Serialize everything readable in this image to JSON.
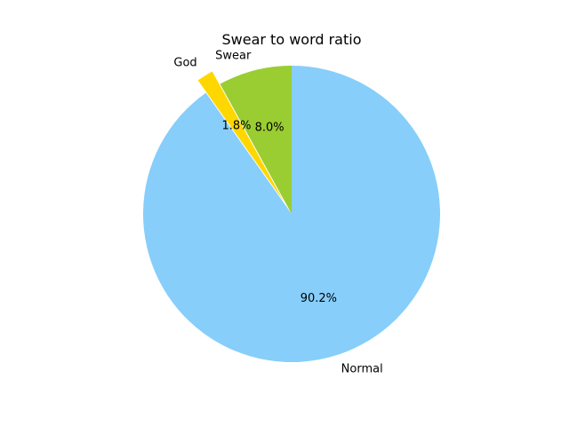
{
  "chart_data": {
    "type": "pie",
    "title": "Swear to word ratio",
    "start_angle_deg": 90,
    "direction": "counterclockwise",
    "slices": [
      {
        "label": "Swear",
        "value": 8.0,
        "pct_label": "8.0%",
        "color": "#9acd32",
        "explode": 0
      },
      {
        "label": "God",
        "value": 1.8,
        "pct_label": "1.8%",
        "color": "#ffd700",
        "explode": 0.1
      },
      {
        "label": "Normal",
        "value": 90.2,
        "pct_label": "90.2%",
        "color": "#87cefa",
        "explode": 0
      }
    ],
    "legend": "none"
  }
}
